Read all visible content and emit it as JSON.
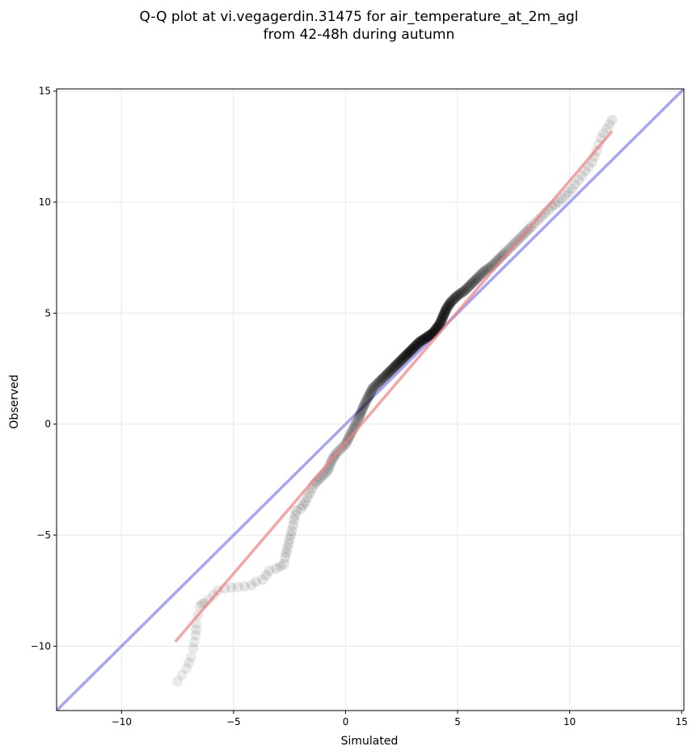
{
  "chart_data": {
    "type": "scatter",
    "title": "Q-Q plot at vi.vegagerdin.31475 for air_temperature_at_2m_agl",
    "subtitle": "from 42-48h during autumn",
    "xlabel": "Simulated",
    "ylabel": "Observed",
    "xlim": [
      -12.9,
      15.1
    ],
    "ylim": [
      -12.9,
      15.1
    ],
    "x_ticks": [
      -10,
      -5,
      0,
      5,
      10,
      15
    ],
    "y_ticks": [
      -10,
      -5,
      0,
      5,
      10,
      15
    ],
    "x_tick_labels": [
      "−10",
      "−5",
      "0",
      "5",
      "10",
      "15"
    ],
    "y_tick_labels": [
      "−10",
      "−5",
      "0",
      "5",
      "10",
      "15"
    ],
    "grid": true,
    "legend": "none",
    "series": [
      {
        "kind": "quantile-points",
        "color": "#000000",
        "x": [
          -7.5,
          -7.3,
          -7.1,
          -6.9,
          -6.8,
          -6.7,
          -6.65,
          -6.6,
          -6.5,
          -6.4,
          -6.3,
          -6.1,
          -5.9,
          -5.7,
          -5.4,
          -4.5,
          -4.2,
          -4.0,
          -3.7,
          -3.4,
          -3.1,
          -2.9,
          -2.75,
          -2.7,
          -2.6,
          -2.5,
          -2.4,
          -2.3,
          -2.2,
          -2.0,
          -1.8,
          -1.6,
          -1.4,
          -1.2,
          -1.0,
          -0.8,
          -0.6,
          -0.4,
          -0.2,
          0.0,
          0.2,
          0.4,
          0.6,
          0.8,
          1.0,
          1.2,
          1.5,
          1.8,
          2.1,
          2.4,
          2.7,
          3.0,
          3.3,
          3.6,
          3.9,
          4.2,
          4.5,
          4.7,
          5.0,
          5.3,
          5.6,
          5.9,
          6.2,
          6.5,
          6.8,
          7.1,
          7.4,
          7.7,
          8.0,
          8.3,
          8.6,
          8.9,
          9.2,
          9.5,
          9.8,
          10.1,
          10.4,
          10.7,
          11.0,
          11.2,
          11.4,
          11.9
        ],
        "y": [
          -11.6,
          -11.3,
          -11.0,
          -10.5,
          -10.1,
          -9.5,
          -9.0,
          -8.6,
          -8.2,
          -8.1,
          -8.05,
          -7.9,
          -7.7,
          -7.5,
          -7.4,
          -7.3,
          -7.25,
          -7.1,
          -7.0,
          -6.6,
          -6.5,
          -6.4,
          -6.3,
          -6.0,
          -5.6,
          -5.2,
          -4.8,
          -4.3,
          -3.9,
          -3.8,
          -3.5,
          -3.1,
          -2.7,
          -2.5,
          -2.3,
          -2.1,
          -1.6,
          -1.3,
          -1.1,
          -0.9,
          -0.5,
          -0.1,
          0.3,
          0.8,
          1.2,
          1.6,
          1.9,
          2.2,
          2.5,
          2.8,
          3.1,
          3.4,
          3.7,
          3.9,
          4.1,
          4.5,
          5.2,
          5.5,
          5.8,
          6.0,
          6.3,
          6.6,
          6.9,
          7.1,
          7.4,
          7.7,
          8.0,
          8.3,
          8.6,
          8.9,
          9.2,
          9.5,
          9.8,
          10.0,
          10.3,
          10.6,
          11.0,
          11.4,
          11.8,
          12.3,
          12.9,
          13.7
        ]
      },
      {
        "kind": "identity-line",
        "color": "#6b6bf0",
        "x": [
          -12.9,
          15.1
        ],
        "y": [
          -12.9,
          15.1
        ]
      },
      {
        "kind": "fit-line",
        "color": "#f08080",
        "x": [
          -7.6,
          11.9
        ],
        "y": [
          -9.8,
          13.2
        ]
      }
    ]
  }
}
